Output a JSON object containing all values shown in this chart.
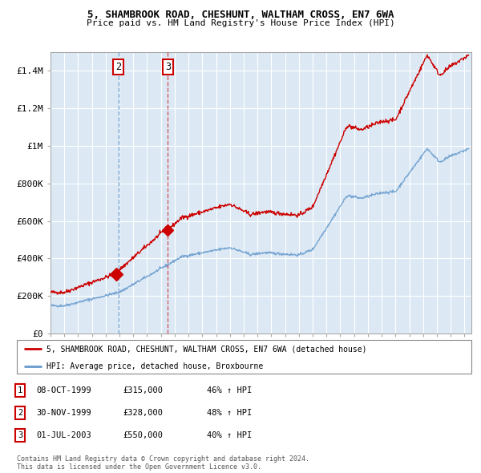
{
  "title": "5, SHAMBROOK ROAD, CHESHUNT, WALTHAM CROSS, EN7 6WA",
  "subtitle": "Price paid vs. HM Land Registry's House Price Index (HPI)",
  "background_color": "#dce9f5",
  "plot_bg_color": "#dce9f5",
  "grid_color": "#ffffff",
  "red_line_color": "#cc0000",
  "blue_line_color": "#6699cc",
  "ylim": [
    0,
    1500000
  ],
  "yticks": [
    0,
    200000,
    400000,
    600000,
    800000,
    1000000,
    1200000,
    1400000
  ],
  "ytick_labels": [
    "£0",
    "£200K",
    "£400K",
    "£600K",
    "£800K",
    "£1M",
    "£1.2M",
    "£1.4M"
  ],
  "xlim_start": 1995.0,
  "xlim_end": 2025.5,
  "vline2_year": 1999.92,
  "vline3_year": 2003.5,
  "t1_year": 1999.77,
  "t1_price": 315000,
  "t3_year": 2003.5,
  "t3_price": 550000,
  "legend_red_label": "5, SHAMBROOK ROAD, CHESHUNT, WALTHAM CROSS, EN7 6WA (detached house)",
  "legend_blue_label": "HPI: Average price, detached house, Broxbourne",
  "table_rows": [
    {
      "num": "1",
      "date": "08-OCT-1999",
      "price": "£315,000",
      "change": "46% ↑ HPI"
    },
    {
      "num": "2",
      "date": "30-NOV-1999",
      "price": "£328,000",
      "change": "48% ↑ HPI"
    },
    {
      "num": "3",
      "date": "01-JUL-2003",
      "price": "£550,000",
      "change": "40% ↑ HPI"
    }
  ],
  "footer": "Contains HM Land Registry data © Crown copyright and database right 2024.\nThis data is licensed under the Open Government Licence v3.0."
}
